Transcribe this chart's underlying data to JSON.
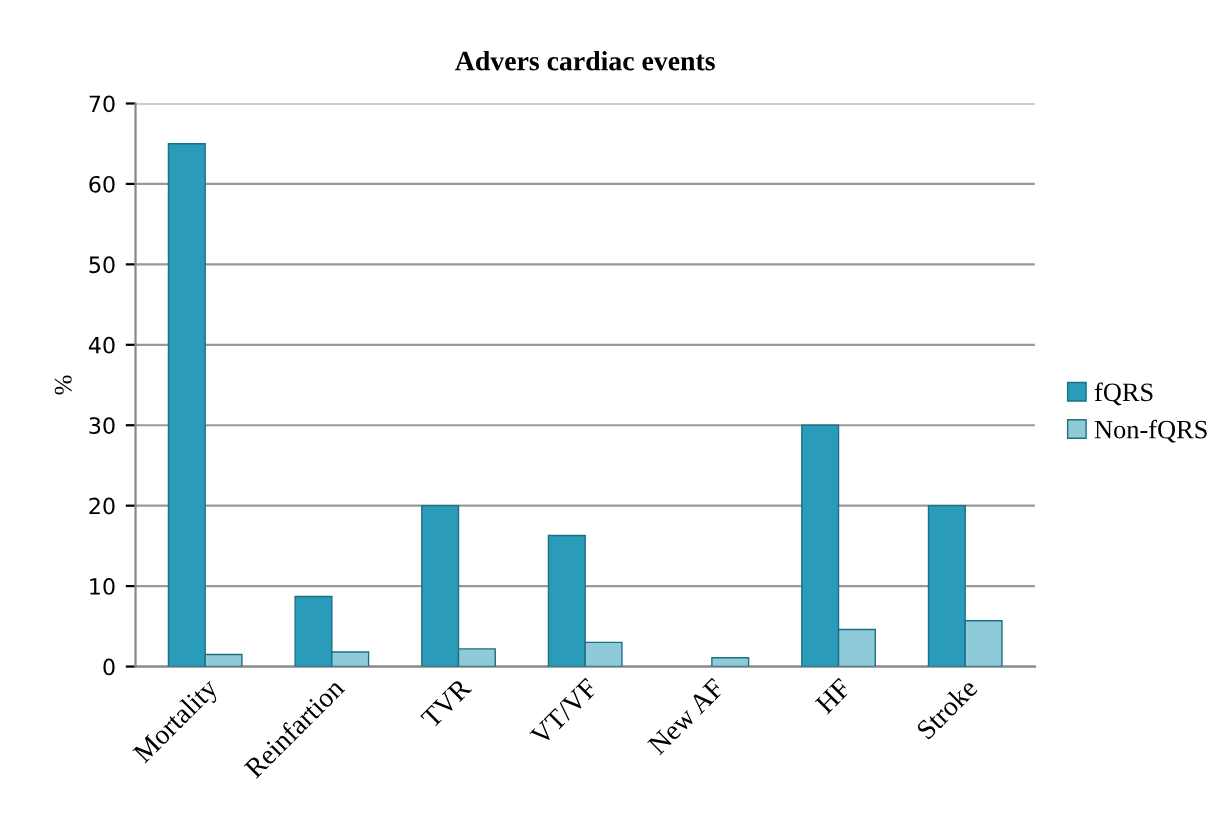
{
  "chart_data": {
    "type": "bar",
    "title": "Advers cardiac events",
    "ylabel": "%",
    "categories": [
      "Mortality",
      "Reinfartion",
      "TVR",
      "VT/VF",
      "New AF",
      "HF",
      "Stroke"
    ],
    "series": [
      {
        "name": "fQRS",
        "color": "#2a9bb8",
        "values": [
          65,
          8.7,
          20,
          16.3,
          null,
          30,
          20
        ]
      },
      {
        "name": "Non-fQRS",
        "color": "#8fcad9",
        "values": [
          1.5,
          1.8,
          2.2,
          3,
          1.1,
          4.6,
          5.7
        ]
      }
    ],
    "ylim": [
      0,
      70
    ],
    "yticks": [
      0,
      10,
      20,
      30,
      40,
      50,
      60,
      70
    ],
    "grid": "y",
    "legend": "right"
  }
}
